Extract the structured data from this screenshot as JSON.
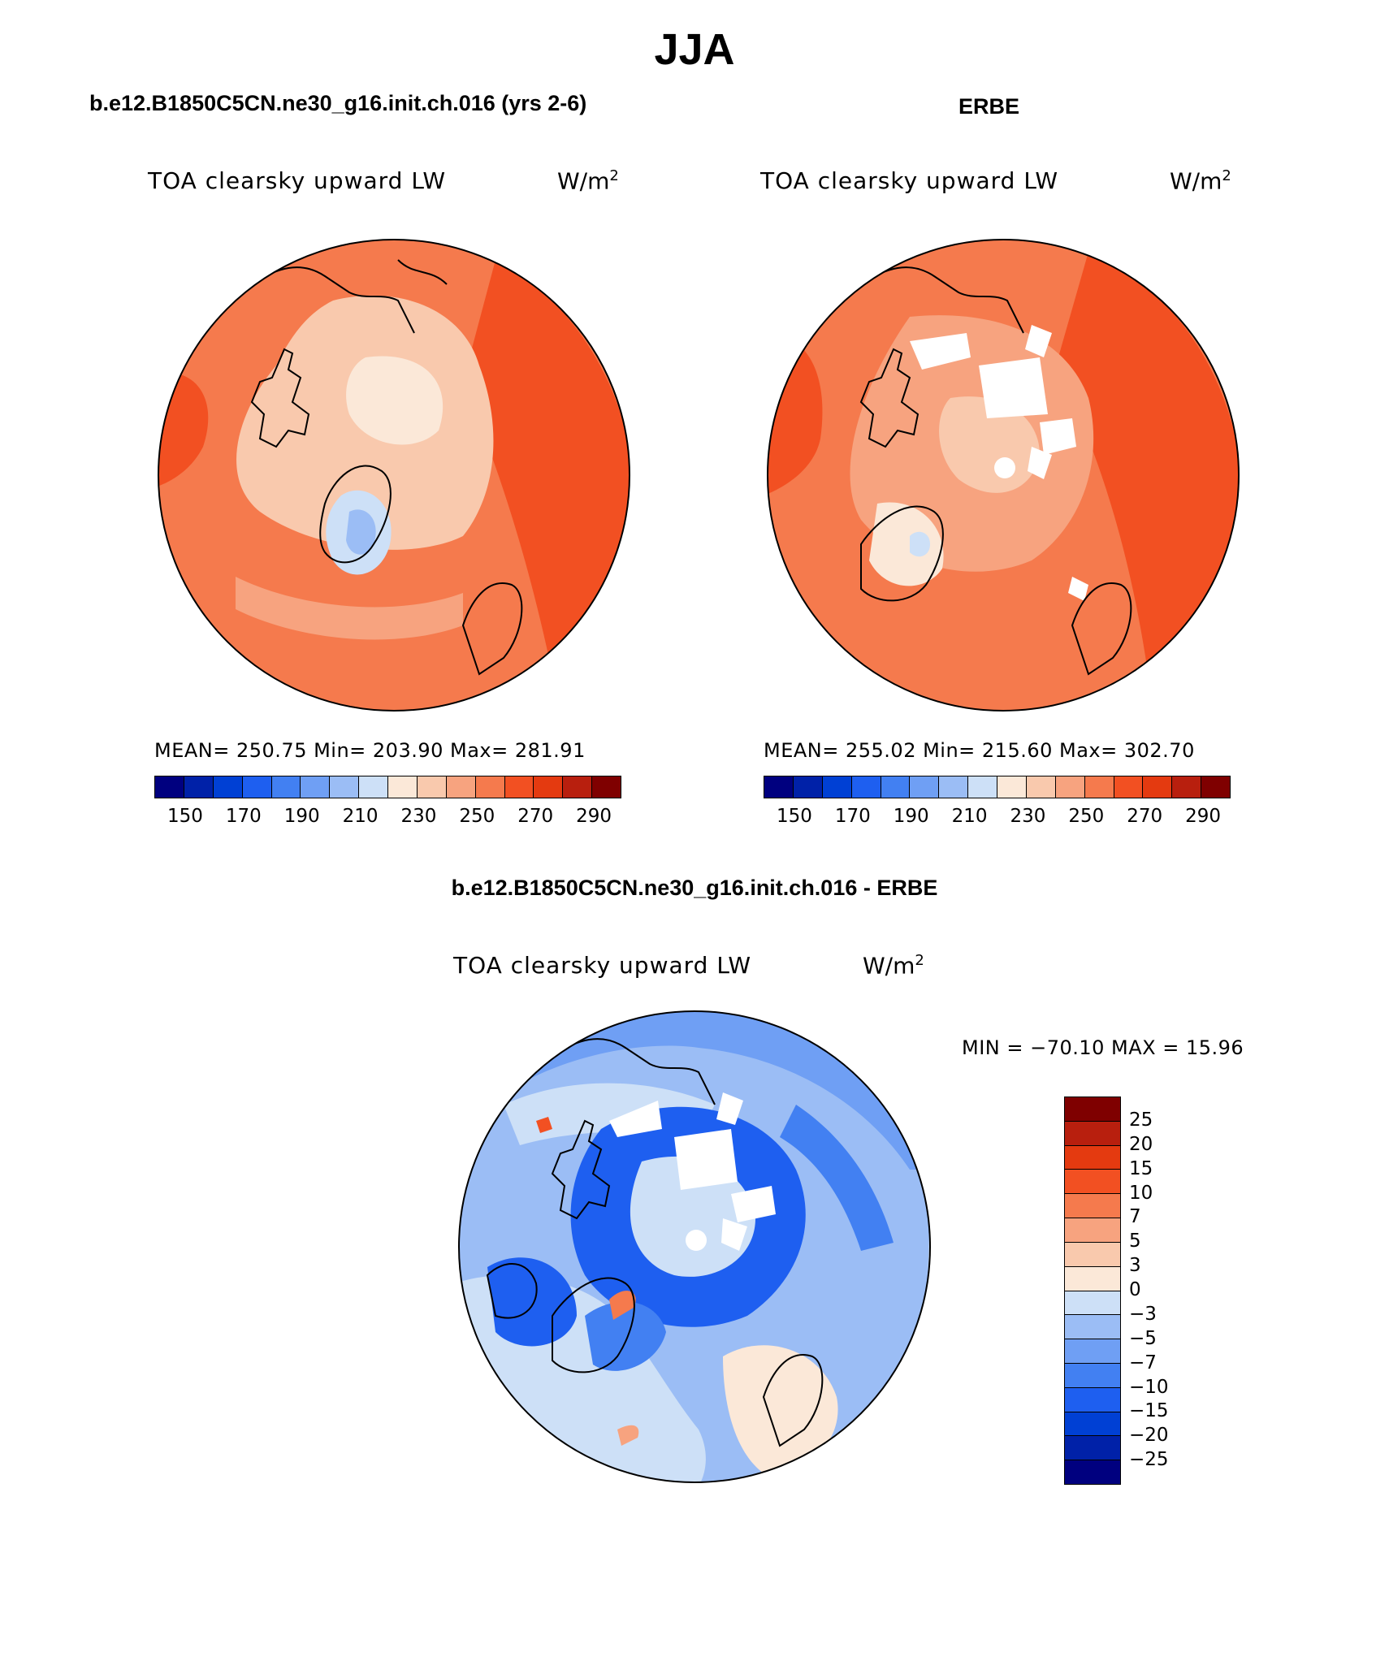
{
  "title": "JJA",
  "panels": [
    {
      "header": "b.e12.B1850C5CN.ne30_g16.init.ch.016 (yrs 2-6)",
      "variable": "TOA clearsky upward LW",
      "units_base": "W/m",
      "units_exp": "2",
      "stats": "MEAN= 250.75   Min= 203.90   Max= 281.91"
    },
    {
      "header": "ERBE",
      "variable": "TOA clearsky upward LW",
      "units_base": "W/m",
      "units_exp": "2",
      "stats": "MEAN= 255.02   Min= 215.60   Max= 302.70"
    },
    {
      "header": "b.e12.B1850C5CN.ne30_g16.init.ch.016 - ERBE",
      "variable": "TOA clearsky upward LW",
      "units_base": "W/m",
      "units_exp": "2",
      "stats": "MIN = −70.10 MAX =   15.96"
    }
  ],
  "colorbar_abs": {
    "colors": [
      "#00007f",
      "#0021a8",
      "#0040d4",
      "#1e5ff0",
      "#4280f2",
      "#6f9ff4",
      "#9bbdf5",
      "#cde0f7",
      "#fbe8d8",
      "#f9c9ad",
      "#f7a37f",
      "#f57a4d",
      "#f25022",
      "#e43a10",
      "#b81f0e",
      "#7f0000"
    ],
    "labels": [
      "150",
      "170",
      "190",
      "210",
      "230",
      "250",
      "270",
      "290"
    ]
  },
  "colorbar_diff": {
    "colors": [
      "#00007f",
      "#0021a8",
      "#0040d4",
      "#1e5ff0",
      "#4280f2",
      "#6f9ff4",
      "#9bbdf5",
      "#cde0f7",
      "#fbe8d8",
      "#f9c9ad",
      "#f7a37f",
      "#f57a4d",
      "#f25022",
      "#e43a10",
      "#b81f0e",
      "#7f0000"
    ],
    "labels": [
      "25",
      "20",
      "15",
      "10",
      "7",
      "5",
      "3",
      "0",
      "−3",
      "−5",
      "−7",
      "−10",
      "−15",
      "−20",
      "−25"
    ]
  }
}
